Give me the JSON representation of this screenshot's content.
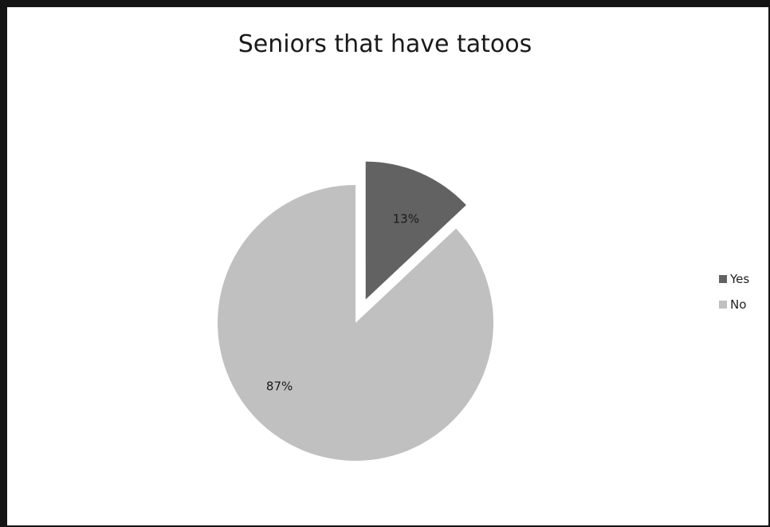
{
  "chart_data": {
    "type": "pie",
    "title": "Seniors that have tatoos",
    "categories": [
      "Yes",
      "No"
    ],
    "values": [
      13,
      87
    ],
    "data_labels": [
      "13%",
      "87%"
    ],
    "colors": [
      "#626262",
      "#c0c0c0"
    ],
    "exploded": "Yes",
    "legend": "right"
  }
}
